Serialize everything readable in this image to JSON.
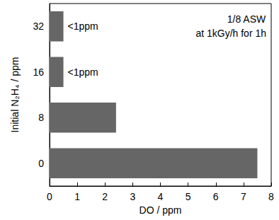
{
  "chart_data": {
    "type": "bar",
    "orientation": "horizontal",
    "categories": [
      "0",
      "8",
      "16",
      "32"
    ],
    "values": [
      7.5,
      2.4,
      0.5,
      0.5
    ],
    "value_labels": [
      null,
      null,
      "<1ppm",
      "<1ppm"
    ],
    "data_labels": true,
    "color": "#666666",
    "x_label": "DO / ppm",
    "y_label": "Initial N₂H₄ / ppm",
    "annotation": [
      "1/8 ASW",
      "at 1kGy/h for 1h"
    ],
    "xlim": [
      0,
      8
    ],
    "xticks": [
      0,
      1,
      2,
      3,
      4,
      5,
      6,
      7,
      8
    ],
    "grid": false
  }
}
